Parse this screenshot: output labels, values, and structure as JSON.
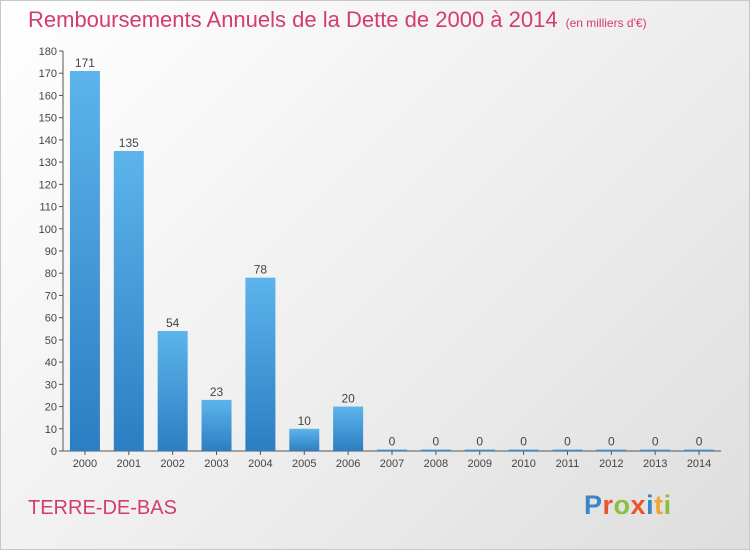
{
  "title": "Remboursements Annuels de la Dette de 2000 à 2014",
  "title_unit": "(en milliers d'€)",
  "commune": "TERRE-DE-BAS",
  "brand": {
    "letters": [
      "P",
      "r",
      "o",
      "x",
      "i",
      "t",
      "i"
    ],
    "colors": [
      "#3b86c6",
      "#e8552b",
      "#8cbf3f",
      "#e8552b",
      "#3b86c6",
      "#f2a531",
      "#8cbf3f"
    ]
  },
  "chart_data": {
    "type": "bar",
    "title": "Remboursements Annuels de la Dette de 2000 à 2014",
    "categories": [
      "2000",
      "2001",
      "2002",
      "2003",
      "2004",
      "2005",
      "2006",
      "2007",
      "2008",
      "2009",
      "2010",
      "2011",
      "2012",
      "2013",
      "2014"
    ],
    "values": [
      171,
      135,
      54,
      23,
      78,
      10,
      20,
      0,
      0,
      0,
      0,
      0,
      0,
      0,
      0
    ],
    "ylim": [
      0,
      180
    ],
    "yticks": [
      0,
      10,
      20,
      30,
      40,
      50,
      60,
      70,
      80,
      90,
      100,
      110,
      120,
      130,
      140,
      150,
      160,
      170,
      180
    ],
    "bar_color": "#3d95d8",
    "grid": false
  }
}
